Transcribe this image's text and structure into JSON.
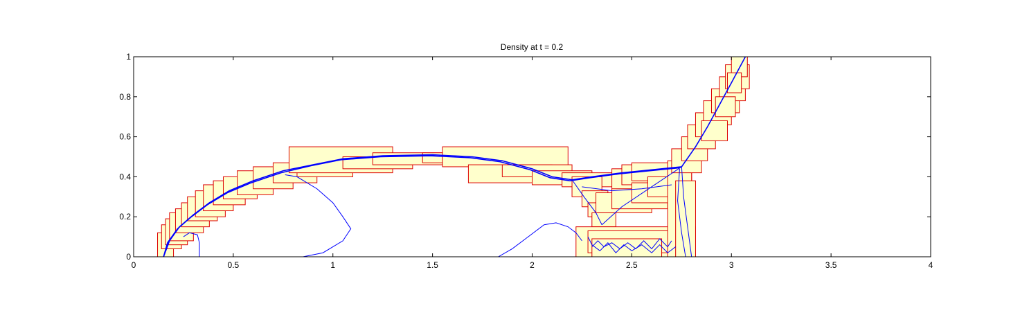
{
  "chart_data": {
    "type": "line",
    "title": "Density at t = 0.2",
    "xlabel": "",
    "ylabel": "",
    "xlim": [
      0,
      4
    ],
    "ylim": [
      0,
      1
    ],
    "x_ticks": [
      "0",
      "0.5",
      "1",
      "1.5",
      "2",
      "2.5",
      "3",
      "3.5",
      "4"
    ],
    "y_ticks": [
      "0",
      "0.2",
      "0.4",
      "0.6",
      "0.8",
      "1"
    ],
    "grid": false,
    "colors": {
      "contour": "#0000ff",
      "box_edge": "#dd0000",
      "box_fill": "#ffffcc",
      "axes": "#000000"
    },
    "refinement_boxes": [
      [
        0.12,
        0.0,
        0.2,
        0.12
      ],
      [
        0.14,
        0.04,
        0.24,
        0.16
      ],
      [
        0.16,
        0.06,
        0.27,
        0.19
      ],
      [
        0.18,
        0.08,
        0.3,
        0.22
      ],
      [
        0.21,
        0.12,
        0.35,
        0.24
      ],
      [
        0.24,
        0.15,
        0.38,
        0.27
      ],
      [
        0.27,
        0.18,
        0.42,
        0.3
      ],
      [
        0.31,
        0.2,
        0.46,
        0.33
      ],
      [
        0.35,
        0.23,
        0.5,
        0.36
      ],
      [
        0.4,
        0.26,
        0.56,
        0.38
      ],
      [
        0.45,
        0.29,
        0.62,
        0.4
      ],
      [
        0.52,
        0.31,
        0.7,
        0.43
      ],
      [
        0.6,
        0.34,
        0.8,
        0.45
      ],
      [
        0.7,
        0.37,
        0.92,
        0.47
      ],
      [
        0.82,
        0.4,
        1.1,
        0.49
      ],
      [
        0.78,
        0.42,
        1.3,
        0.55
      ],
      [
        1.05,
        0.44,
        1.4,
        0.5
      ],
      [
        1.2,
        0.46,
        1.8,
        0.52
      ],
      [
        1.45,
        0.47,
        1.95,
        0.52
      ],
      [
        1.55,
        0.45,
        2.18,
        0.55
      ],
      [
        1.68,
        0.37,
        2.1,
        0.46
      ],
      [
        1.85,
        0.4,
        2.2,
        0.46
      ],
      [
        2.0,
        0.36,
        2.3,
        0.43
      ],
      [
        2.15,
        0.35,
        2.45,
        0.42
      ],
      [
        2.2,
        0.3,
        2.35,
        0.4
      ],
      [
        2.25,
        0.25,
        2.38,
        0.33
      ],
      [
        2.28,
        0.2,
        2.4,
        0.27
      ],
      [
        2.3,
        0.15,
        2.42,
        0.22
      ],
      [
        2.22,
        0.0,
        2.82,
        0.15
      ],
      [
        2.28,
        0.02,
        2.75,
        0.13
      ],
      [
        2.3,
        0.0,
        2.65,
        0.09
      ],
      [
        2.4,
        0.33,
        2.8,
        0.44
      ],
      [
        2.45,
        0.36,
        2.75,
        0.46
      ],
      [
        2.5,
        0.38,
        2.8,
        0.47
      ],
      [
        2.32,
        0.22,
        2.6,
        0.32
      ],
      [
        2.4,
        0.24,
        2.68,
        0.34
      ],
      [
        2.5,
        0.27,
        2.75,
        0.37
      ],
      [
        2.58,
        0.3,
        2.8,
        0.4
      ],
      [
        2.68,
        0.0,
        2.8,
        0.48
      ],
      [
        2.72,
        0.0,
        2.82,
        0.38
      ],
      [
        2.7,
        0.42,
        2.85,
        0.54
      ],
      [
        2.75,
        0.48,
        2.88,
        0.6
      ],
      [
        2.78,
        0.54,
        2.92,
        0.66
      ],
      [
        2.82,
        0.6,
        2.96,
        0.72
      ],
      [
        2.86,
        0.66,
        3.0,
        0.78
      ],
      [
        2.9,
        0.72,
        3.04,
        0.84
      ],
      [
        2.94,
        0.78,
        3.07,
        0.9
      ],
      [
        2.97,
        0.84,
        3.09,
        0.96
      ],
      [
        3.0,
        0.9,
        3.08,
        1.0
      ],
      [
        2.98,
        0.82,
        3.05,
        0.92
      ],
      [
        2.92,
        0.7,
        3.02,
        0.8
      ],
      [
        2.85,
        0.58,
        2.98,
        0.68
      ]
    ],
    "series": [
      {
        "values": [
          [
            0.15,
            0.0
          ],
          [
            0.18,
            0.08
          ],
          [
            0.23,
            0.15
          ],
          [
            0.3,
            0.21
          ],
          [
            0.38,
            0.27
          ],
          [
            0.48,
            0.33
          ],
          [
            0.6,
            0.38
          ],
          [
            0.75,
            0.43
          ],
          [
            0.9,
            0.46
          ],
          [
            1.05,
            0.49
          ],
          [
            1.25,
            0.505
          ],
          [
            1.5,
            0.51
          ],
          [
            1.7,
            0.5
          ],
          [
            1.85,
            0.48
          ],
          [
            2.0,
            0.44
          ],
          [
            2.1,
            0.4
          ],
          [
            2.2,
            0.385
          ],
          [
            2.3,
            0.4
          ],
          [
            2.45,
            0.42
          ],
          [
            2.6,
            0.435
          ],
          [
            2.75,
            0.45
          ],
          [
            2.82,
            0.55
          ],
          [
            2.88,
            0.65
          ],
          [
            2.94,
            0.76
          ],
          [
            3.0,
            0.87
          ],
          [
            3.07,
            1.0
          ]
        ]
      },
      {
        "values": [
          [
            0.15,
            0.0
          ],
          [
            0.17,
            0.07
          ],
          [
            0.22,
            0.14
          ],
          [
            0.29,
            0.2
          ],
          [
            0.37,
            0.26
          ],
          [
            0.47,
            0.32
          ],
          [
            0.59,
            0.37
          ],
          [
            0.74,
            0.42
          ],
          [
            0.89,
            0.455
          ],
          [
            1.04,
            0.485
          ],
          [
            1.24,
            0.5
          ],
          [
            1.49,
            0.505
          ],
          [
            1.69,
            0.495
          ],
          [
            1.84,
            0.475
          ],
          [
            1.99,
            0.435
          ],
          [
            2.09,
            0.395
          ],
          [
            2.19,
            0.38
          ],
          [
            2.29,
            0.395
          ],
          [
            2.44,
            0.415
          ],
          [
            2.59,
            0.43
          ],
          [
            2.74,
            0.445
          ]
        ]
      },
      {
        "values": [
          [
            2.75,
            0.45
          ],
          [
            2.6,
            0.35
          ],
          [
            2.45,
            0.25
          ],
          [
            2.35,
            0.16
          ]
        ]
      },
      {
        "values": [
          [
            2.2,
            0.385
          ],
          [
            2.26,
            0.3
          ],
          [
            2.32,
            0.22
          ],
          [
            2.35,
            0.16
          ]
        ]
      },
      {
        "values": [
          [
            2.75,
            0.45
          ],
          [
            2.76,
            0.3
          ],
          [
            2.78,
            0.15
          ],
          [
            2.8,
            0.0
          ]
        ]
      },
      {
        "values": [
          [
            2.74,
            0.44
          ],
          [
            2.73,
            0.28
          ],
          [
            2.75,
            0.12
          ],
          [
            2.77,
            0.0
          ]
        ]
      },
      {
        "values": [
          [
            0.33,
            0.0
          ],
          [
            0.33,
            0.07
          ],
          [
            0.32,
            0.11
          ],
          [
            0.28,
            0.12
          ],
          [
            0.25,
            0.1
          ]
        ]
      },
      {
        "values": [
          [
            0.85,
            0.0
          ],
          [
            0.95,
            0.02
          ],
          [
            1.05,
            0.08
          ],
          [
            1.09,
            0.14
          ],
          [
            1.05,
            0.2
          ],
          [
            1.0,
            0.27
          ],
          [
            0.92,
            0.34
          ],
          [
            0.82,
            0.4
          ],
          [
            0.76,
            0.41
          ]
        ]
      },
      {
        "values": [
          [
            1.83,
            0.0
          ],
          [
            1.9,
            0.04
          ],
          [
            1.98,
            0.1
          ],
          [
            2.06,
            0.16
          ],
          [
            2.12,
            0.17
          ],
          [
            2.18,
            0.15
          ],
          [
            2.22,
            0.12
          ],
          [
            2.25,
            0.08
          ]
        ]
      },
      {
        "values": [
          [
            2.25,
            0.35
          ],
          [
            2.4,
            0.33
          ],
          [
            2.55,
            0.34
          ],
          [
            2.7,
            0.36
          ]
        ]
      },
      {
        "values": [
          [
            2.3,
            0.05
          ],
          [
            2.33,
            0.08
          ],
          [
            2.36,
            0.05
          ],
          [
            2.4,
            0.07
          ],
          [
            2.44,
            0.04
          ],
          [
            2.48,
            0.07
          ],
          [
            2.52,
            0.04
          ],
          [
            2.56,
            0.08
          ],
          [
            2.6,
            0.04
          ],
          [
            2.64,
            0.09
          ],
          [
            2.68,
            0.05
          ],
          [
            2.7,
            0.08
          ]
        ]
      },
      {
        "values": [
          [
            2.28,
            0.1
          ],
          [
            2.3,
            0.06
          ],
          [
            2.34,
            0.03
          ],
          [
            2.38,
            0.07
          ],
          [
            2.42,
            0.02
          ],
          [
            2.46,
            0.06
          ],
          [
            2.5,
            0.03
          ],
          [
            2.55,
            0.06
          ],
          [
            2.6,
            0.02
          ],
          [
            2.64,
            0.06
          ],
          [
            2.68,
            0.02
          ],
          [
            2.72,
            0.05
          ]
        ]
      }
    ]
  }
}
